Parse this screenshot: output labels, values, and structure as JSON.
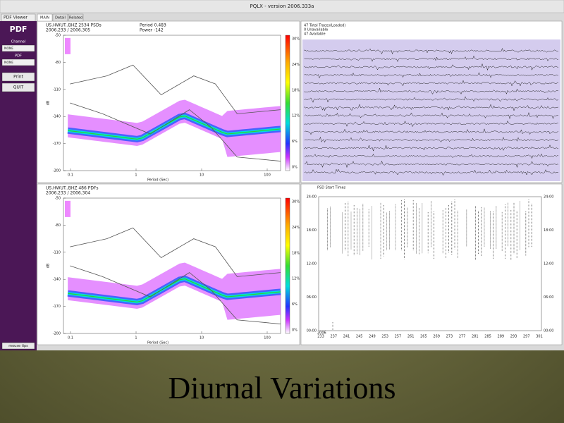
{
  "window": {
    "title": "PQLX - version 2006.333a",
    "menu": "PDF Viewer",
    "tabs": [
      "MAIN",
      "Detail",
      "Related"
    ]
  },
  "sidebar": {
    "heading": "PDF",
    "channel_label": "Channel",
    "channel_value": "NONE",
    "pdf_label": "PDF",
    "pdf_value": "NONE",
    "buttons": [
      "Print",
      "QUIT"
    ],
    "footer": "mouse tips"
  },
  "pdf_panels": [
    {
      "header": [
        "US.HWUT..BHZ 2534 PSDs",
        "2006.233 / 2006.305"
      ],
      "info": [
        "Period 0.483",
        "Power -142"
      ],
      "y_label": "dB",
      "x_label": "Period (Sec)",
      "yticks": [
        "-50",
        "-80",
        "-110",
        "-140",
        "-170",
        "-200"
      ],
      "xticks": [
        "0.1",
        "1",
        "10",
        "100"
      ],
      "colorbar": [
        "30%",
        "24%",
        "18%",
        "12%",
        "6%",
        "0%"
      ]
    },
    {
      "header": [
        "US.HWUT..BHZ 486 PDFs",
        "2006.233 / 2006.304"
      ],
      "info": [],
      "y_label": "dB",
      "x_label": "Period (Sec)",
      "yticks": [
        "-50",
        "-80",
        "-110",
        "-140",
        "-170",
        "-200"
      ],
      "xticks": [
        "0.1",
        "1",
        "10",
        "100"
      ],
      "colorbar": [
        "30%",
        "24%",
        "18%",
        "12%",
        "6%",
        "0%"
      ]
    }
  ],
  "traces": {
    "summary": [
      "47 Total Traces(Loaded)",
      "0 Unavailable",
      "47 Available"
    ]
  },
  "times": {
    "title": "PSD Start Times",
    "yticks": [
      "24:00",
      "18:00",
      "12:00",
      "06:00",
      "00:00"
    ],
    "year": "2006",
    "xticks": [
      "233",
      "237",
      "241",
      "245",
      "249",
      "253",
      "257",
      "261",
      "265",
      "269",
      "273",
      "277",
      "281",
      "285",
      "289",
      "293",
      "297",
      "301"
    ]
  },
  "caption": "Diurnal Variations"
}
